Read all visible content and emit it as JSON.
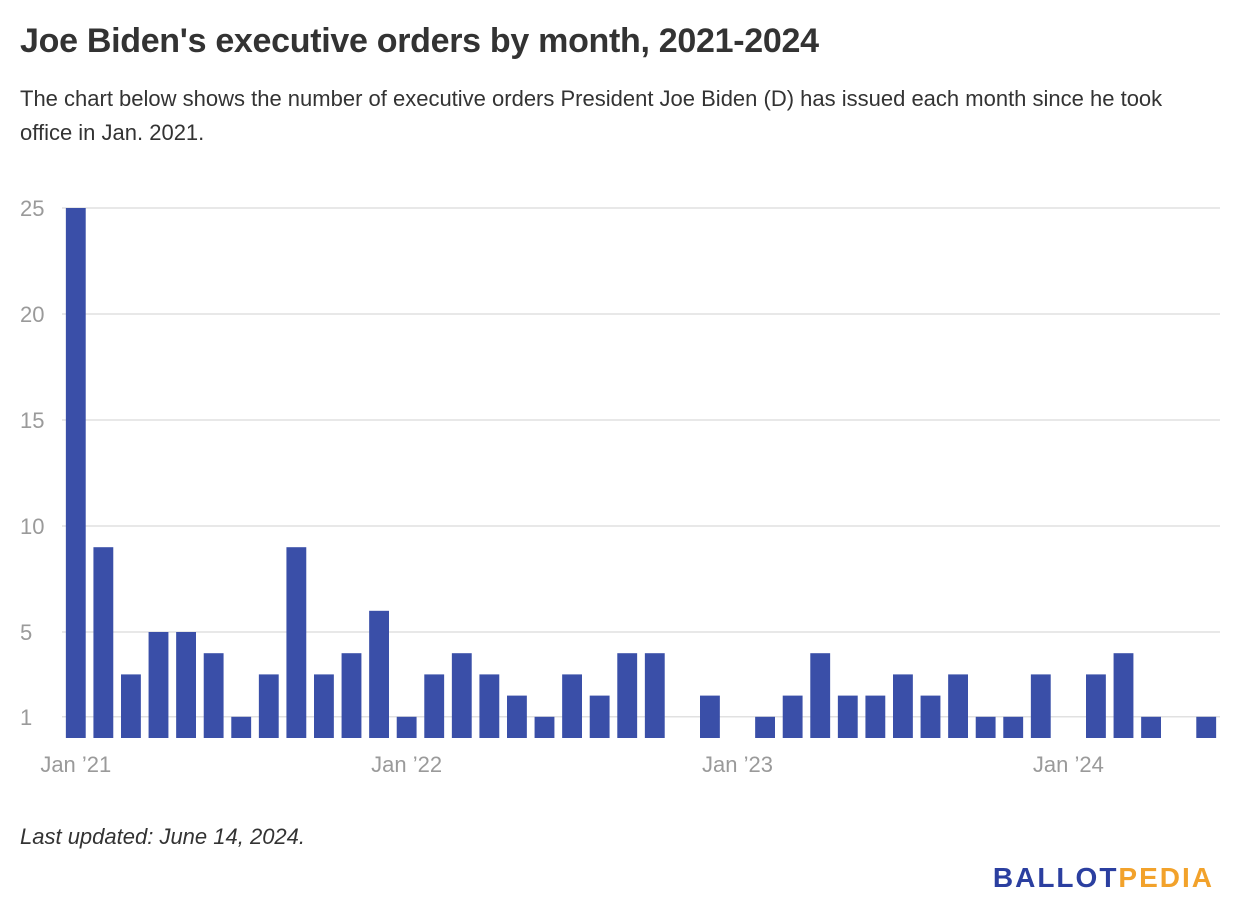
{
  "header": {
    "title": "Joe Biden's executive orders by month, 2021-2024",
    "subtitle": "The chart below shows the number of executive orders President Joe Biden (D) has issued each month since he took office in Jan. 2021."
  },
  "footer": {
    "note": "Last updated: June 14, 2024.",
    "logo_part1": "BALLOT",
    "logo_part2": "PEDIA"
  },
  "colors": {
    "bar": "#3a4fa8",
    "grid": "#e1e1e1",
    "axis_text": "#9a9a9a",
    "logo_primary": "#2b3fa0",
    "logo_accent": "#f2a22b"
  },
  "chart_data": {
    "type": "bar",
    "categories": [
      "Jan 2021",
      "Feb 2021",
      "Mar 2021",
      "Apr 2021",
      "May 2021",
      "Jun 2021",
      "Jul 2021",
      "Aug 2021",
      "Sep 2021",
      "Oct 2021",
      "Nov 2021",
      "Dec 2021",
      "Jan 2022",
      "Feb 2022",
      "Mar 2022",
      "Apr 2022",
      "May 2022",
      "Jun 2022",
      "Jul 2022",
      "Aug 2022",
      "Sep 2022",
      "Oct 2022",
      "Nov 2022",
      "Dec 2022",
      "Jan 2023",
      "Feb 2023",
      "Mar 2023",
      "Apr 2023",
      "May 2023",
      "Jun 2023",
      "Jul 2023",
      "Aug 2023",
      "Sep 2023",
      "Oct 2023",
      "Nov 2023",
      "Dec 2023",
      "Jan 2024",
      "Feb 2024",
      "Mar 2024",
      "Apr 2024",
      "May 2024",
      "Jun 2024"
    ],
    "values": [
      25,
      9,
      3,
      5,
      5,
      4,
      1,
      3,
      9,
      3,
      4,
      6,
      1,
      3,
      4,
      3,
      2,
      1,
      3,
      2,
      4,
      4,
      0,
      2,
      0,
      1,
      2,
      4,
      2,
      2,
      3,
      2,
      3,
      1,
      1,
      3,
      0,
      3,
      4,
      1,
      0,
      1
    ],
    "x_tick_labels": [
      {
        "category_index": 0,
        "label": "Jan ’21"
      },
      {
        "category_index": 12,
        "label": "Jan ’22"
      },
      {
        "category_index": 24,
        "label": "Jan ’23"
      },
      {
        "category_index": 36,
        "label": "Jan ’24"
      }
    ],
    "y_ticks": [
      1,
      5,
      10,
      15,
      20,
      25
    ],
    "ylim": [
      0,
      25
    ],
    "grid": true,
    "xlabel": "",
    "ylabel": ""
  }
}
